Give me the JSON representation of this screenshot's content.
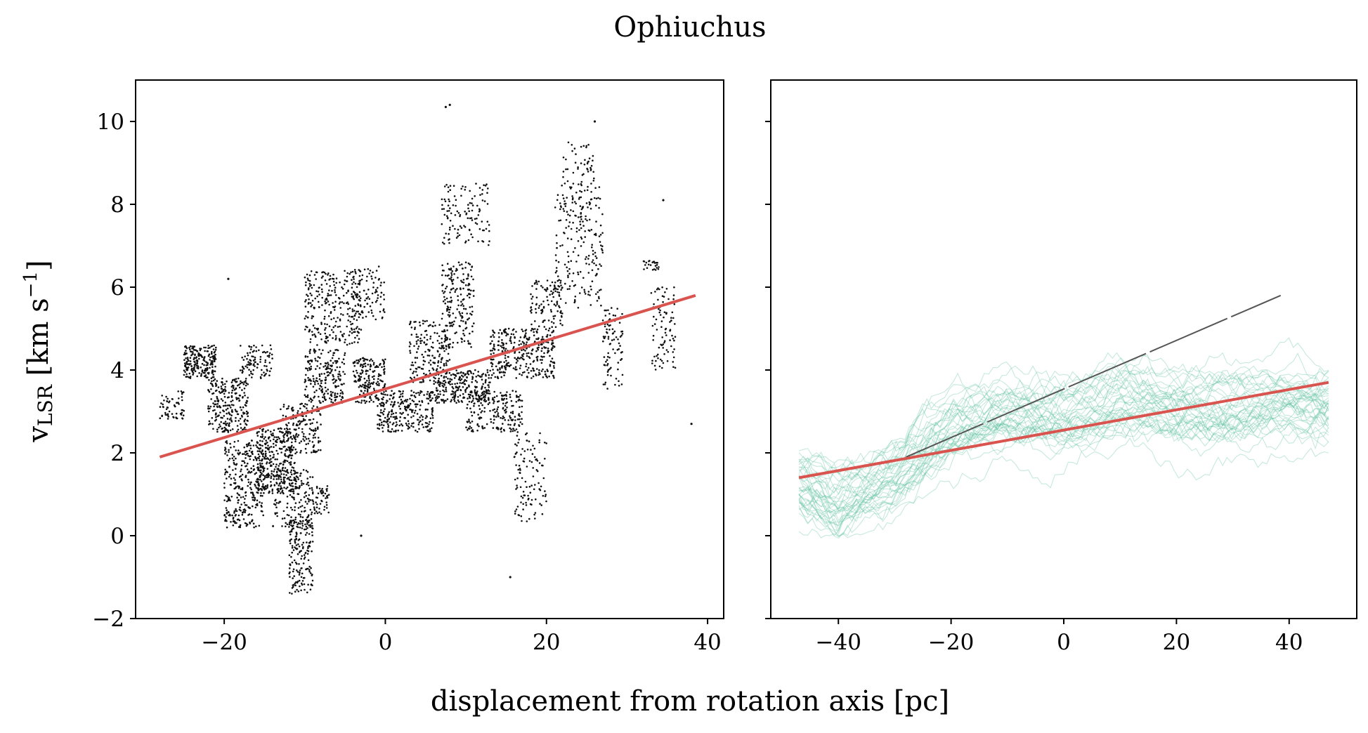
{
  "figure": {
    "title": "Ophiuchus",
    "xlabel": "displacement from rotation axis [pc]",
    "ylabel_main": "v",
    "ylabel_sub": "LSR",
    "ylabel_units": " [km s",
    "ylabel_exp": "−1",
    "ylabel_close": "]"
  },
  "colors": {
    "scatter": "#111111",
    "fit_line": "#d9534f",
    "ensemble": "#5cbf9f",
    "reference_line": "#555555"
  },
  "chart_data": [
    {
      "type": "scatter",
      "panel": "left",
      "xlim": [
        -31,
        42
      ],
      "ylim": [
        -2,
        11
      ],
      "xticks": [
        -20,
        0,
        20,
        40
      ],
      "xtick_labels": [
        "−20",
        "0",
        "20",
        "40"
      ],
      "yticks": [
        -2,
        0,
        2,
        4,
        6,
        8,
        10
      ],
      "ytick_labels": [
        "−2",
        "0",
        "2",
        "4",
        "6",
        "8",
        "10"
      ],
      "grid": false,
      "clusters": [
        {
          "x": [
            -28,
            -25
          ],
          "y": [
            2.8,
            3.5
          ],
          "n": 60
        },
        {
          "x": [
            -25,
            -21
          ],
          "y": [
            3.8,
            4.6
          ],
          "n": 220
        },
        {
          "x": [
            -22,
            -17
          ],
          "y": [
            2.5,
            3.8
          ],
          "n": 260
        },
        {
          "x": [
            -20,
            -15
          ],
          "y": [
            0.2,
            2.3
          ],
          "n": 320
        },
        {
          "x": [
            -16,
            -11
          ],
          "y": [
            1.0,
            2.6
          ],
          "n": 320
        },
        {
          "x": [
            -18,
            -14
          ],
          "y": [
            3.8,
            4.6
          ],
          "n": 90
        },
        {
          "x": [
            -14,
            -9
          ],
          "y": [
            0.2,
            1.6
          ],
          "n": 180
        },
        {
          "x": [
            -12,
            -9
          ],
          "y": [
            -1.4,
            0.4
          ],
          "n": 170
        },
        {
          "x": [
            -9,
            -7
          ],
          "y": [
            0.5,
            1.2
          ],
          "n": 50
        },
        {
          "x": [
            -13,
            -8
          ],
          "y": [
            2.0,
            3.2
          ],
          "n": 160
        },
        {
          "x": [
            -10,
            -5
          ],
          "y": [
            3.2,
            4.5
          ],
          "n": 220
        },
        {
          "x": [
            -10,
            -3
          ],
          "y": [
            4.6,
            6.4
          ],
          "n": 280
        },
        {
          "x": [
            -4,
            0
          ],
          "y": [
            3.2,
            4.3
          ],
          "n": 200
        },
        {
          "x": [
            -4,
            0
          ],
          "y": [
            5.2,
            6.5
          ],
          "n": 90
        },
        {
          "x": [
            -1,
            6
          ],
          "y": [
            2.5,
            3.5
          ],
          "n": 260
        },
        {
          "x": [
            3,
            8
          ],
          "y": [
            3.7,
            5.2
          ],
          "n": 170
        },
        {
          "x": [
            6,
            13
          ],
          "y": [
            3.2,
            4.0
          ],
          "n": 260
        },
        {
          "x": [
            7,
            11
          ],
          "y": [
            4.5,
            6.6
          ],
          "n": 200
        },
        {
          "x": [
            7,
            13
          ],
          "y": [
            7.0,
            8.5
          ],
          "n": 120
        },
        {
          "x": [
            10,
            17
          ],
          "y": [
            2.5,
            3.5
          ],
          "n": 200
        },
        {
          "x": [
            13,
            21
          ],
          "y": [
            3.8,
            5.0
          ],
          "n": 340
        },
        {
          "x": [
            16,
            20
          ],
          "y": [
            0.3,
            2.5
          ],
          "n": 110
        },
        {
          "x": [
            18,
            22
          ],
          "y": [
            5.0,
            6.2
          ],
          "n": 100
        },
        {
          "x": [
            21,
            27
          ],
          "y": [
            5.5,
            8.5
          ],
          "n": 200
        },
        {
          "x": [
            22,
            26
          ],
          "y": [
            7.5,
            9.5
          ],
          "n": 70
        },
        {
          "x": [
            27,
            29.5
          ],
          "y": [
            3.5,
            5.5
          ],
          "n": 90
        },
        {
          "x": [
            33,
            36
          ],
          "y": [
            4.0,
            6.0
          ],
          "n": 90
        },
        {
          "x": [
            32,
            34
          ],
          "y": [
            6.4,
            6.7
          ],
          "n": 25
        }
      ],
      "isolated_points": [
        {
          "x": 7.5,
          "y": 10.35
        },
        {
          "x": 8.0,
          "y": 10.4
        },
        {
          "x": 26.0,
          "y": 10.0
        },
        {
          "x": 15.5,
          "y": -1.0
        },
        {
          "x": 38.0,
          "y": 2.7
        },
        {
          "x": -19.5,
          "y": 6.2
        },
        {
          "x": -3.0,
          "y": 0.0
        },
        {
          "x": 34.5,
          "y": 8.1
        }
      ],
      "fit_line": {
        "x": [
          -28,
          38.5
        ],
        "y": [
          1.9,
          5.8
        ]
      }
    },
    {
      "type": "line",
      "panel": "right",
      "xlim": [
        -52,
        52
      ],
      "ylim": [
        -2,
        11
      ],
      "xticks": [
        -40,
        -20,
        0,
        20,
        40
      ],
      "xtick_labels": [
        "−40",
        "−20",
        "0",
        "20",
        "40"
      ],
      "yticks": [
        -2,
        0,
        2,
        4,
        6,
        8,
        10
      ],
      "grid": false,
      "ensemble": {
        "x_range": [
          -47,
          47
        ],
        "n_realizations": 40,
        "band_center": [
          {
            "x": -47,
            "y": 1.2
          },
          {
            "x": -40,
            "y": 0.8
          },
          {
            "x": -30,
            "y": 1.4
          },
          {
            "x": -20,
            "y": 2.6
          },
          {
            "x": -10,
            "y": 2.9
          },
          {
            "x": 0,
            "y": 2.8
          },
          {
            "x": 10,
            "y": 3.2
          },
          {
            "x": 20,
            "y": 3.0
          },
          {
            "x": 30,
            "y": 3.0
          },
          {
            "x": 40,
            "y": 3.2
          },
          {
            "x": 47,
            "y": 3.1
          }
        ],
        "band_halfwidth": 1.3
      },
      "fit_line": {
        "x": [
          -47,
          47
        ],
        "y": [
          1.4,
          3.7
        ]
      },
      "reference_line": {
        "x": [
          -28,
          38.5
        ],
        "y": [
          1.9,
          5.8
        ]
      }
    }
  ]
}
